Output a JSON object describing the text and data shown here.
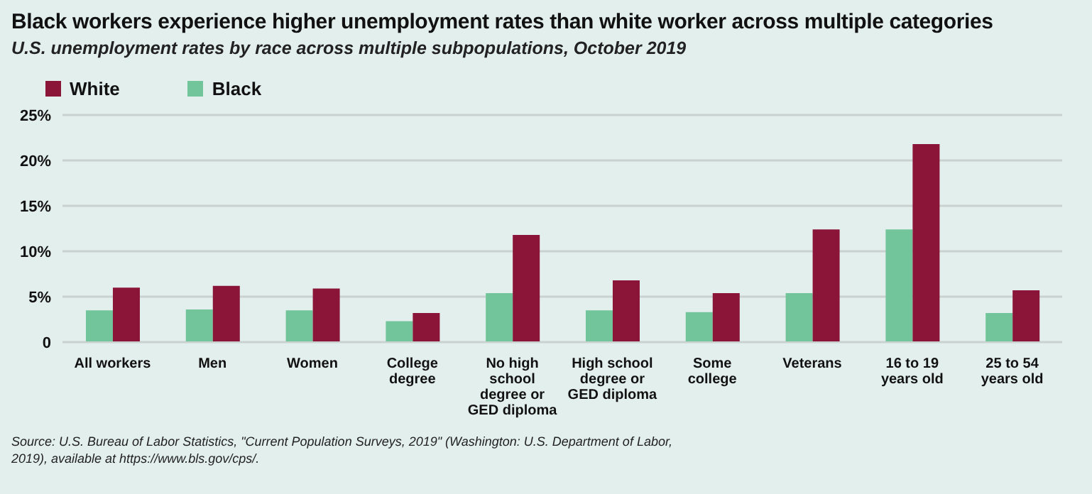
{
  "chart_data": {
    "type": "bar",
    "title": "Black workers experience higher unemployment rates than white worker across multiple categories",
    "subtitle": "U.S. unemployment rates by race across multiple subpopulations, October 2019",
    "categories": [
      "All workers",
      "Men",
      "Women",
      "College degree",
      "No high school degree or GED diploma",
      "High school degree or GED diploma",
      "Some college",
      "Veterans",
      "16 to 19 years old",
      "25 to 54 years old"
    ],
    "series": [
      {
        "name": "Black",
        "color": "#72c59a",
        "values": [
          3.5,
          3.6,
          3.5,
          2.3,
          5.4,
          3.5,
          3.3,
          5.4,
          12.4,
          3.2
        ]
      },
      {
        "name": "White",
        "color": "#8a1538",
        "values": [
          6.0,
          6.2,
          5.9,
          3.2,
          11.8,
          6.8,
          5.4,
          12.4,
          21.8,
          5.7
        ]
      }
    ],
    "ylim": [
      0,
      25
    ],
    "yticks": [
      0,
      {
        "value": 5,
        "label": "5%"
      },
      {
        "value": 10,
        "label": "10%"
      },
      {
        "value": 15,
        "label": "15%"
      },
      {
        "value": 20,
        "label": "20%"
      },
      {
        "value": 25,
        "label": "25%"
      }
    ],
    "grid": "y",
    "legend": "top left",
    "annotations": [
      "Source: U.S. Bureau of Labor Statistics, \"Current Population Surveys, 2019\" (Washington: U.S. Department of Labor, 2019), available at https://www.bls.gov/cps/."
    ]
  }
}
